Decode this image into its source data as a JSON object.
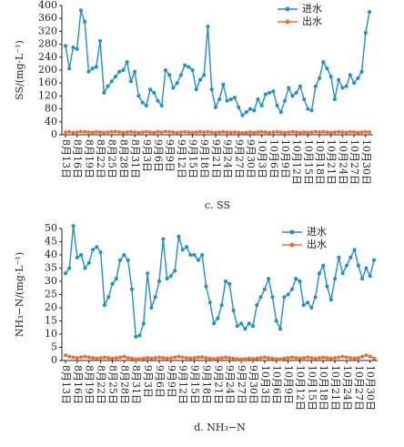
{
  "chart_data": [
    {
      "type": "line",
      "caption": "c. SS",
      "ylabel": "SS/(mg·L⁻¹)",
      "categories": [
        "8月13日",
        null,
        null,
        "8月16日",
        null,
        null,
        "8月19日",
        null,
        null,
        "8月22日",
        null,
        null,
        "8月25日",
        null,
        null,
        "8月28日",
        null,
        null,
        "8月31日",
        null,
        null,
        "9月3日",
        null,
        null,
        "9月6日",
        null,
        null,
        "9月9日",
        null,
        null,
        "9月12日",
        null,
        null,
        "9月15日",
        null,
        null,
        "9月18日",
        null,
        null,
        "9月21日",
        null,
        null,
        "9月24日",
        null,
        null,
        "9月27日",
        null,
        null,
        "9月30日",
        null,
        null,
        "10月3日",
        null,
        null,
        "10月6日",
        null,
        null,
        "10月9日",
        null,
        null,
        "10月12日",
        null,
        null,
        "10月15日",
        null,
        null,
        "10月18日",
        null,
        null,
        "10月21日",
        null,
        null,
        "10月24日",
        null,
        null,
        "10月27日",
        null,
        null,
        "10月30日",
        null
      ],
      "ylim": [
        0,
        400
      ],
      "yticks": [
        0,
        40,
        80,
        120,
        160,
        200,
        240,
        280,
        320,
        360,
        400
      ],
      "legend": "top-right",
      "series": [
        {
          "name": "进水",
          "color": "#1f8fc9",
          "values": [
            275,
            205,
            270,
            265,
            385,
            350,
            195,
            205,
            210,
            290,
            130,
            150,
            165,
            180,
            195,
            200,
            225,
            165,
            195,
            120,
            100,
            90,
            140,
            130,
            105,
            90,
            200,
            185,
            145,
            160,
            185,
            215,
            210,
            200,
            140,
            170,
            185,
            335,
            140,
            85,
            110,
            155,
            105,
            110,
            115,
            85,
            60,
            70,
            80,
            75,
            110,
            90,
            125,
            130,
            135,
            90,
            70,
            105,
            145,
            120,
            130,
            150,
            110,
            80,
            75,
            150,
            175,
            225,
            205,
            180,
            110,
            170,
            145,
            150,
            185,
            160,
            175,
            195,
            315,
            380
          ]
        },
        {
          "name": "出水",
          "color": "#e8703a",
          "values": [
            8,
            9,
            7,
            8,
            10,
            9,
            8,
            7,
            9,
            8,
            7,
            8,
            9,
            10,
            8,
            7,
            8,
            9,
            8,
            7,
            8,
            9,
            8,
            7,
            9,
            8,
            10,
            9,
            8,
            7,
            8,
            9,
            8,
            7,
            8,
            9,
            8,
            9,
            8,
            7,
            8,
            9,
            8,
            7,
            8,
            7,
            6,
            7,
            8,
            7,
            8,
            9,
            8,
            7,
            8,
            9,
            8,
            7,
            8,
            9,
            8,
            7,
            8,
            7,
            8,
            9,
            8,
            9,
            8,
            7,
            8,
            9,
            8,
            7,
            9,
            8,
            7,
            8,
            9,
            8
          ]
        }
      ]
    },
    {
      "type": "line",
      "caption": "d. NH₃−N",
      "ylabel": "NH₃−N/(mg·L⁻¹)",
      "categories": [
        "8月13日",
        null,
        null,
        "8月16日",
        null,
        null,
        "8月19日",
        null,
        null,
        "8月22日",
        null,
        null,
        "8月25日",
        null,
        null,
        "8月28日",
        null,
        null,
        "8月31日",
        null,
        null,
        "9月3日",
        null,
        null,
        "9月6日",
        null,
        null,
        "9月9日",
        null,
        null,
        "9月12日",
        null,
        null,
        "9月15日",
        null,
        null,
        "9月18日",
        null,
        null,
        "9月21日",
        null,
        null,
        "9月24日",
        null,
        null,
        "9月27日",
        null,
        null,
        "9月30日",
        null,
        null,
        "10月3日",
        null,
        null,
        "10月6日",
        null,
        null,
        "10月9日",
        null,
        null,
        "10月12日",
        null,
        null,
        "10月15日",
        null,
        null,
        "10月18日",
        null,
        null,
        "10月21日",
        null,
        null,
        "10月24日",
        null,
        null,
        "10月27日",
        null,
        null,
        "10月30日",
        null
      ],
      "ylim": [
        0,
        50
      ],
      "yticks": [
        0,
        5,
        10,
        15,
        20,
        25,
        30,
        35,
        40,
        45,
        50
      ],
      "legend": "top-right",
      "series": [
        {
          "name": "进水",
          "color": "#1f8fc9",
          "values": [
            33,
            35,
            51,
            39,
            40,
            35,
            37,
            42,
            43,
            41,
            21,
            24,
            29,
            31,
            38,
            40,
            38,
            27,
            9,
            9.5,
            14,
            33,
            20,
            24,
            30,
            46,
            31,
            32,
            34,
            47,
            42,
            43,
            40,
            40,
            38,
            40,
            28,
            22,
            14,
            16,
            21,
            30,
            29,
            19,
            13,
            14,
            12,
            14,
            13,
            21,
            24,
            27,
            31,
            24,
            15,
            12,
            24,
            25,
            27,
            31,
            30,
            21,
            22,
            20,
            24,
            33,
            36,
            28,
            23,
            31,
            39,
            33,
            36,
            39,
            42,
            36,
            31,
            35,
            32,
            38
          ]
        },
        {
          "name": "出水",
          "color": "#e8703a",
          "values": [
            2,
            1.5,
            1.2,
            1,
            1.3,
            1.5,
            1.2,
            1,
            0.8,
            1,
            1.2,
            1,
            0.8,
            1,
            1.2,
            1.5,
            1,
            0.8,
            0.5,
            0.6,
            0.8,
            1,
            0.8,
            1,
            1.2,
            1,
            0.8,
            1,
            1.2,
            1.5,
            1.2,
            1,
            0.8,
            1,
            1.2,
            1.3,
            1,
            0.8,
            0.6,
            0.8,
            1,
            1.2,
            1,
            0.8,
            0.6,
            0.5,
            0.6,
            0.8,
            0.6,
            0.8,
            1,
            1.2,
            1,
            0.8,
            0.6,
            0.5,
            0.8,
            1,
            1.2,
            1,
            0.8,
            1,
            1.2,
            1,
            0.8,
            1,
            1.2,
            1,
            0.8,
            1,
            1.2,
            1.5,
            1.2,
            1,
            0.8,
            1,
            1.5,
            2,
            1.5,
            0.8
          ]
        }
      ]
    }
  ]
}
